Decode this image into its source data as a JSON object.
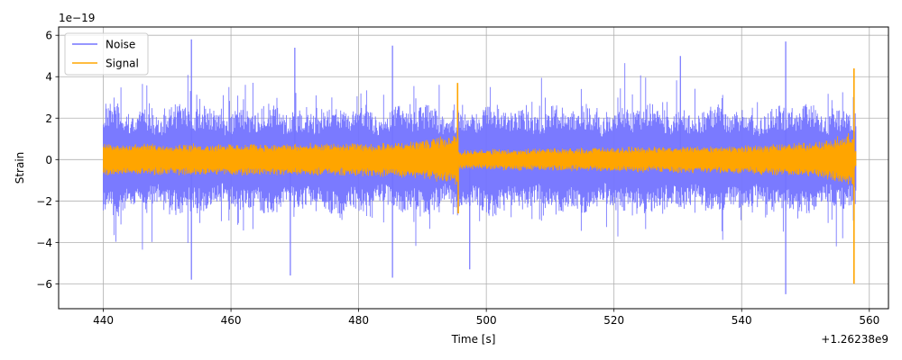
{
  "chart_data": {
    "type": "line",
    "title": "",
    "xlabel": "Time [s]",
    "ylabel": "Strain",
    "x_offset_text": "+1.26238e9",
    "y_scale_text": "1e−19",
    "xlim": [
      433,
      563
    ],
    "ylim": [
      -7.2,
      6.4
    ],
    "x_ticks": [
      440,
      460,
      480,
      500,
      520,
      540,
      560
    ],
    "x_tick_labels": [
      "440",
      "460",
      "480",
      "500",
      "520",
      "540",
      "560"
    ],
    "y_ticks": [
      -6,
      -4,
      -2,
      0,
      2,
      4,
      6
    ],
    "y_tick_labels": [
      "−6",
      "−4",
      "−2",
      "0",
      "2",
      "4",
      "6"
    ],
    "grid": true,
    "legend_position": "top-left",
    "series": [
      {
        "name": "Noise",
        "color": "#7373ff",
        "x_range": [
          440,
          558
        ],
        "typical_envelope": 2.4,
        "max_envelope": 4.9,
        "peaks": [
          {
            "x": 453.8,
            "y": 5.8
          },
          {
            "x": 453.8,
            "y": -5.8
          },
          {
            "x": 469.3,
            "y": -5.6
          },
          {
            "x": 470.0,
            "y": 5.4
          },
          {
            "x": 485.3,
            "y": 5.5
          },
          {
            "x": 485.3,
            "y": -5.7
          },
          {
            "x": 497.4,
            "y": -5.3
          },
          {
            "x": 530.4,
            "y": 5.0
          },
          {
            "x": 546.9,
            "y": 5.7
          },
          {
            "x": 546.9,
            "y": -6.5
          }
        ]
      },
      {
        "name": "Signal",
        "color": "#ffa500",
        "x_range": [
          440,
          558
        ],
        "chirp_times": [
          495.6,
          557.6
        ],
        "base_amplitude": 0.65,
        "peaks": [
          {
            "x": 495.5,
            "y": 3.7
          },
          {
            "x": 495.6,
            "y": -2.6
          },
          {
            "x": 557.6,
            "y": 4.4
          },
          {
            "x": 557.6,
            "y": -6.0
          }
        ]
      }
    ]
  }
}
